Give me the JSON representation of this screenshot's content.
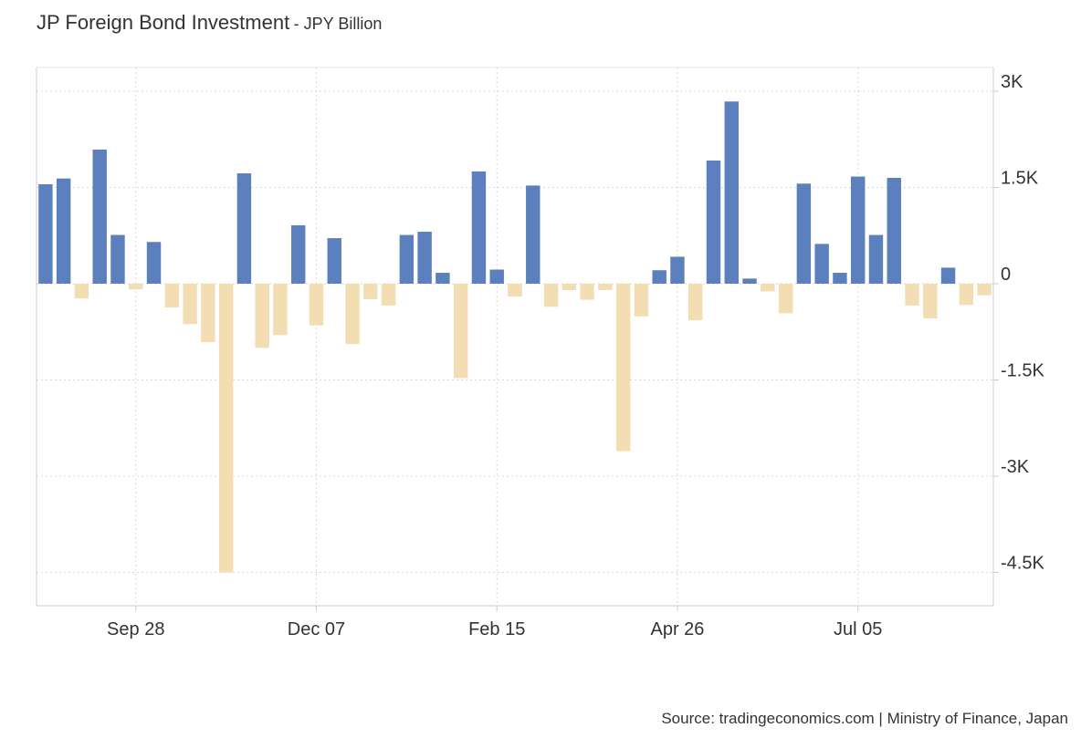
{
  "chart_data": {
    "type": "bar",
    "title": "JP Foreign Bond Investment",
    "unit_label": "JPY Billion",
    "source": "Source: tradingeconomics.com | Ministry of Finance, Japan",
    "ylim": [
      -5000,
      3300
    ],
    "y_ticks": [
      {
        "value": 3000,
        "label": "3K"
      },
      {
        "value": 1500,
        "label": "1.5K"
      },
      {
        "value": 0,
        "label": "0"
      },
      {
        "value": -1500,
        "label": "-1.5K"
      },
      {
        "value": -3000,
        "label": "-3K"
      },
      {
        "value": -4500,
        "label": "-4.5K"
      }
    ],
    "x_ticks": [
      {
        "index": 5.5,
        "label": "Sep 28"
      },
      {
        "index": 15.5,
        "label": "Dec 07"
      },
      {
        "index": 25.5,
        "label": "Feb 15"
      },
      {
        "index": 35.5,
        "label": "Apr 26"
      },
      {
        "index": 45.5,
        "label": "Jul 05"
      }
    ],
    "grid": true,
    "colors": {
      "positive": "#5b80bd",
      "negative": "#f3ddb3",
      "grid": "#d8d8d8",
      "axis": "#cccccc"
    },
    "values": [
      1550,
      1640,
      -230,
      2090,
      760,
      -90,
      650,
      -370,
      -630,
      -910,
      -4500,
      1720,
      -1000,
      -800,
      910,
      -650,
      710,
      -940,
      -240,
      -340,
      760,
      810,
      170,
      -1470,
      1750,
      220,
      -200,
      1530,
      -360,
      -100,
      -250,
      -100,
      -2610,
      -510,
      210,
      420,
      -570,
      1920,
      2840,
      80,
      -120,
      -460,
      1560,
      620,
      170,
      1670,
      760,
      1650,
      -340,
      -540,
      250,
      -330,
      -180
    ]
  }
}
